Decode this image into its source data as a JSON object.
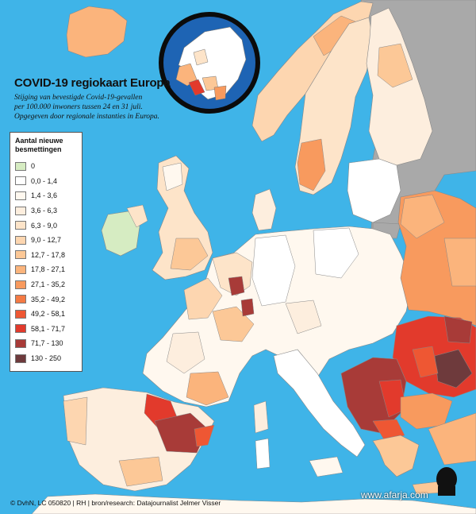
{
  "title": "COVID-19 regiokaart Europa",
  "subtitle": {
    "line1": "Stijging van bevestigde Covid-19-gevallen",
    "line2": "per 100.000 inwoners tussen 24 en 31 juli.",
    "line3": "Opgegeven door regionale instanties in Europa."
  },
  "legend": {
    "title_line1": "Aantal nieuwe",
    "title_line2": "besmettingen",
    "items": [
      {
        "label": "0",
        "color": "#d6ecc2"
      },
      {
        "label": "0,0 - 1,4",
        "color": "#ffffff"
      },
      {
        "label": "1,4 - 3,6",
        "color": "#fff8ef"
      },
      {
        "label": "3,6 - 6,3",
        "color": "#fdeede"
      },
      {
        "label": "6,3 - 9,0",
        "color": "#fde4c9"
      },
      {
        "label": "9,0 - 12,7",
        "color": "#fdd6b0"
      },
      {
        "label": "12,7 - 17,8",
        "color": "#fcc897"
      },
      {
        "label": "17,8 - 27,1",
        "color": "#fbb47c"
      },
      {
        "label": "27,1 - 35,2",
        "color": "#f89a5e"
      },
      {
        "label": "35,2 - 49,2",
        "color": "#f47a44"
      },
      {
        "label": "49,2 - 58,1",
        "color": "#ee5733"
      },
      {
        "label": "58,1 - 71,7",
        "color": "#e23a2c"
      },
      {
        "label": "71,7 - 130",
        "color": "#a83b38"
      },
      {
        "label": "130 - 250",
        "color": "#6e3a3c"
      }
    ]
  },
  "credit": "© DvhN, LC 050820 | RH | bron/research: Datajournalist Jelmer Visser",
  "watermark": "www.afarja.com",
  "colors": {
    "sea": "#3fb4e8",
    "non_data_land": "#a9a9a9",
    "border": "#888888",
    "inset_ring": "#0b0b0b",
    "inset_sea": "#1e64b4"
  }
}
